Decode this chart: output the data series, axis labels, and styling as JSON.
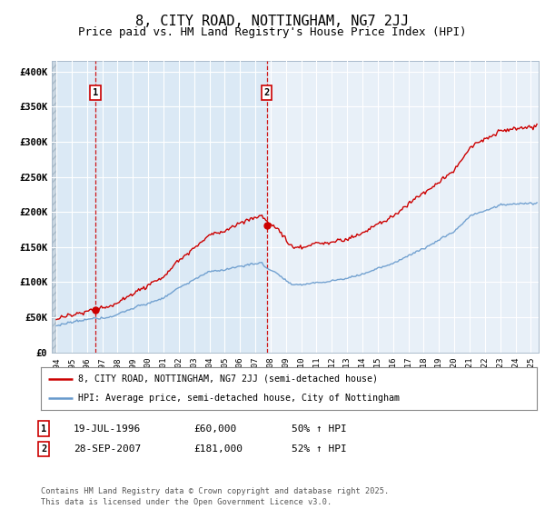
{
  "title": "8, CITY ROAD, NOTTINGHAM, NG7 2JJ",
  "subtitle": "Price paid vs. HM Land Registry's House Price Index (HPI)",
  "title_fontsize": 11,
  "subtitle_fontsize": 9,
  "bg_color": "#ffffff",
  "plot_bg_color": "#e8f0f8",
  "shaded_region_color": "#d0e4f4",
  "grid_color": "#ffffff",
  "red_line_color": "#cc0000",
  "blue_line_color": "#6699cc",
  "sale1_year": 1996.54,
  "sale1_price": 60000,
  "sale2_year": 2007.74,
  "sale2_price": 181000,
  "yticks": [
    0,
    50000,
    100000,
    150000,
    200000,
    250000,
    300000,
    350000,
    400000
  ],
  "ytick_labels": [
    "£0",
    "£50K",
    "£100K",
    "£150K",
    "£200K",
    "£250K",
    "£300K",
    "£350K",
    "£400K"
  ],
  "xmin": 1993.7,
  "xmax": 2025.5,
  "ymin": 0,
  "ymax": 415000,
  "legend1": "8, CITY ROAD, NOTTINGHAM, NG7 2JJ (semi-detached house)",
  "legend2": "HPI: Average price, semi-detached house, City of Nottingham",
  "footnote": "Contains HM Land Registry data © Crown copyright and database right 2025.\nThis data is licensed under the Open Government Licence v3.0.",
  "table_row1": [
    "1",
    "19-JUL-1996",
    "£60,000",
    "50% ↑ HPI"
  ],
  "table_row2": [
    "2",
    "28-SEP-2007",
    "£181,000",
    "52% ↑ HPI"
  ]
}
